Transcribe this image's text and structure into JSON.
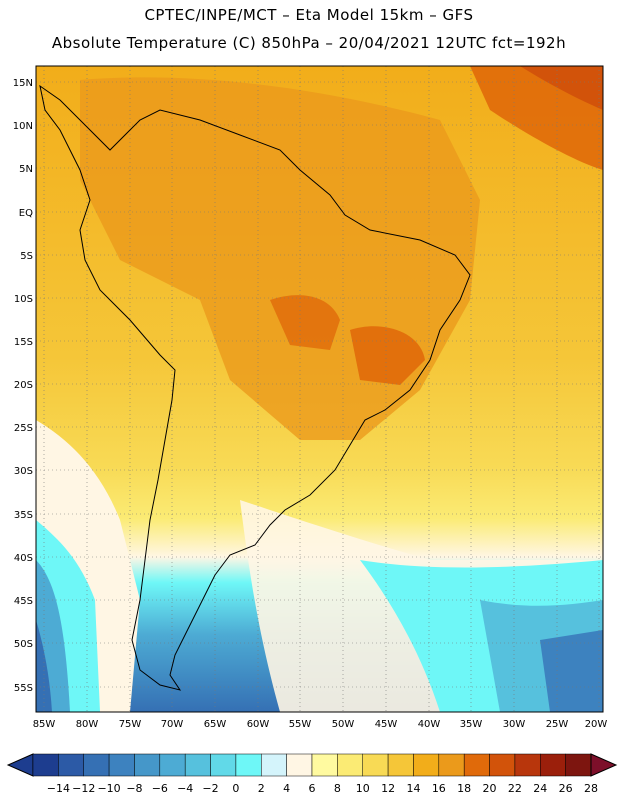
{
  "header": {
    "line1": "CPTEC/INPE/MCT –  Eta Model 15km – GFS",
    "line2": "Absolute Temperature (C) 850hPa – 20/04/2021 12UTC fct=192h"
  },
  "map": {
    "lat_labels": [
      "15N",
      "10N",
      "5N",
      "EQ",
      "5S",
      "10S",
      "15S",
      "20S",
      "25S",
      "30S",
      "35S",
      "40S",
      "45S",
      "50S",
      "55S"
    ],
    "lon_labels": [
      "85W",
      "80W",
      "75W",
      "70W",
      "65W",
      "60W",
      "55W",
      "50W",
      "45W",
      "40W",
      "35W",
      "30W",
      "25W",
      "20W"
    ]
  },
  "colorbar": {
    "labels": [
      "-14",
      "-12",
      "-10",
      "-8",
      "-6",
      "-4",
      "-2",
      "0",
      "2",
      "4",
      "6",
      "8",
      "10",
      "12",
      "14",
      "16",
      "18",
      "20",
      "22",
      "24",
      "26",
      "28"
    ],
    "colors": [
      "#1d3d8f",
      "#2c5aa6",
      "#3570b4",
      "#3d82bf",
      "#4597c9",
      "#4dabd4",
      "#56c1dd",
      "#61d9e8",
      "#6ef7f7",
      "#d4f4fb",
      "#fff6e4",
      "#fffaa0",
      "#fbeb74",
      "#f8da55",
      "#f5c638",
      "#f2ad1a",
      "#eb9a1b",
      "#e06a0a",
      "#d2530a",
      "#b8360c",
      "#9b1f0b",
      "#7d150f"
    ]
  }
}
